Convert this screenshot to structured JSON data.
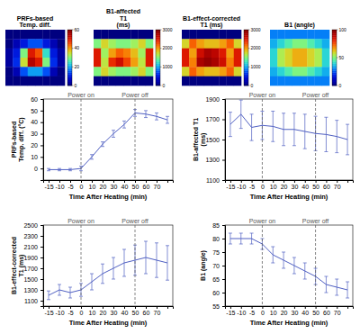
{
  "chart_data": [
    {
      "type": "heatmap",
      "title": "PRFs-based\nTemp. diff.",
      "colorbar_range": [
        0,
        60
      ],
      "colorbar_ticks": [
        0,
        20,
        40,
        60
      ],
      "cells": [
        [
          0,
          0,
          0,
          0,
          0,
          0,
          0,
          0
        ],
        [
          0,
          5,
          10,
          15,
          15,
          10,
          5,
          0
        ],
        [
          3,
          10,
          30,
          50,
          45,
          25,
          10,
          3
        ],
        [
          3,
          12,
          35,
          55,
          50,
          30,
          12,
          3
        ],
        [
          0,
          5,
          15,
          20,
          20,
          15,
          5,
          0
        ],
        [
          0,
          0,
          0,
          0,
          0,
          0,
          0,
          0
        ]
      ]
    },
    {
      "type": "heatmap",
      "title": "B1-affected\nT1\n(ms)",
      "colorbar_range": [
        0,
        3000
      ],
      "colorbar_ticks": [
        0,
        1000,
        2000,
        3000
      ],
      "cells": [
        [
          0,
          0,
          0,
          0,
          0,
          0,
          0,
          0
        ],
        [
          1500,
          1800,
          1600,
          1500,
          1500,
          1600,
          1800,
          1500
        ],
        [
          2500,
          1600,
          2000,
          2200,
          2100,
          1900,
          1600,
          2500
        ],
        [
          2500,
          1700,
          2400,
          2600,
          2300,
          2000,
          1700,
          2500
        ],
        [
          1500,
          1800,
          1600,
          1500,
          1500,
          1600,
          1800,
          1500
        ],
        [
          0,
          0,
          0,
          0,
          0,
          0,
          0,
          0
        ]
      ]
    },
    {
      "type": "heatmap",
      "title": "B1-effect-corrected\nT1 (ms)",
      "colorbar_range": [
        0,
        3000
      ],
      "colorbar_ticks": [
        0,
        1000,
        2000,
        3000
      ],
      "cells": [
        [
          0,
          0,
          0,
          0,
          0,
          0,
          0,
          0
        ],
        [
          1800,
          2200,
          2000,
          1900,
          1900,
          2000,
          2200,
          1800
        ],
        [
          2500,
          2000,
          2600,
          2800,
          2700,
          2500,
          2000,
          2500
        ],
        [
          2500,
          2100,
          2800,
          2900,
          2800,
          2600,
          2100,
          2500
        ],
        [
          1800,
          2200,
          2000,
          1900,
          1900,
          2000,
          2200,
          1800
        ],
        [
          0,
          0,
          0,
          0,
          0,
          0,
          0,
          0
        ]
      ]
    },
    {
      "type": "heatmap",
      "title": "B1 (angle)",
      "colorbar_range": [
        0,
        100
      ],
      "colorbar_ticks": [
        0,
        50,
        100
      ],
      "cells": [
        [
          30,
          30,
          30,
          30,
          30,
          30,
          30,
          30
        ],
        [
          35,
          40,
          45,
          50,
          50,
          45,
          40,
          35
        ],
        [
          40,
          55,
          60,
          65,
          65,
          60,
          55,
          40
        ],
        [
          40,
          55,
          60,
          65,
          65,
          60,
          55,
          40
        ],
        [
          35,
          40,
          45,
          50,
          50,
          45,
          40,
          35
        ],
        [
          30,
          30,
          30,
          30,
          30,
          30,
          30,
          30
        ]
      ]
    },
    {
      "type": "line",
      "xlabel": "Time After Heating (min)",
      "ylabel": "PRFs-based\nTemp. diff. (°C)",
      "categories": [
        "-15",
        "-10",
        "-5",
        "0",
        "10",
        "20",
        "30",
        "40",
        "50",
        "60",
        "70",
        null
      ],
      "values": [
        -1,
        -1,
        -1,
        0,
        10,
        21,
        30,
        38,
        48,
        47,
        45,
        42
      ],
      "errors": [
        1,
        1,
        1,
        2,
        2,
        2,
        3,
        3,
        3,
        3,
        3,
        3
      ],
      "ylim": [
        -10,
        60
      ],
      "yticks": [
        0,
        10,
        20,
        30,
        40,
        50,
        60
      ],
      "color": "#4f5fc2",
      "grid": false,
      "annotations": [
        {
          "text": "Power on",
          "x": "0"
        },
        {
          "text": "Power off",
          "x": "50"
        }
      ]
    },
    {
      "type": "line",
      "xlabel": "Time After Heating (min)",
      "ylabel": "B1-affected T1\n(ms)",
      "categories": [
        "-15",
        "-10",
        "-5",
        "0",
        "10",
        "20",
        "30",
        "40",
        "50",
        "60",
        "70",
        null
      ],
      "values": [
        1650,
        1750,
        1620,
        1640,
        1630,
        1600,
        1600,
        1580,
        1560,
        1550,
        1530,
        1500
      ],
      "errors": [
        120,
        140,
        130,
        140,
        150,
        160,
        160,
        170,
        170,
        170,
        160,
        150
      ],
      "ylim": [
        1100,
        1900
      ],
      "yticks": [
        1100,
        1300,
        1500,
        1700,
        1900
      ],
      "color": "#4f5fc2",
      "grid": false,
      "annotations": [
        {
          "text": "Power on",
          "x": "0"
        },
        {
          "text": "Power off",
          "x": "50"
        }
      ]
    },
    {
      "type": "line",
      "xlabel": "Time After Heating (min)",
      "ylabel": "B1-effect-corrected\nT1 (ms)",
      "categories": [
        "-15",
        "-10",
        "-5",
        "0",
        "10",
        "20",
        "30",
        "40",
        "50",
        "60",
        "70",
        null
      ],
      "values": [
        1200,
        1300,
        1250,
        1300,
        1450,
        1600,
        1700,
        1800,
        1850,
        1900,
        1850,
        1800
      ],
      "errors": [
        80,
        100,
        100,
        120,
        150,
        180,
        200,
        250,
        280,
        300,
        320,
        320
      ],
      "ylim": [
        1000,
        2500
      ],
      "yticks": [
        1100,
        1300,
        1500,
        1700,
        1900,
        2100,
        2300,
        2500
      ],
      "color": "#4f5fc2",
      "grid": false,
      "annotations": [
        {
          "text": "Power on",
          "x": "0"
        },
        {
          "text": "Power off",
          "x": "50"
        }
      ]
    },
    {
      "type": "line",
      "xlabel": "Time After Heating (min)",
      "ylabel": "B1 (angle)",
      "categories": [
        "-15",
        "-10",
        "-5",
        "0",
        "10",
        "20",
        "30",
        "40",
        "50",
        "60",
        "70",
        null
      ],
      "values": [
        80,
        80,
        80,
        78,
        74,
        72,
        70,
        68,
        66,
        63,
        62,
        61
      ],
      "errors": [
        2,
        2,
        2,
        2,
        3,
        3,
        3,
        3,
        3,
        3,
        3,
        3
      ],
      "ylim": [
        55,
        85
      ],
      "yticks": [
        55,
        60,
        65,
        70,
        75,
        80,
        85
      ],
      "color": "#4f5fc2",
      "grid": false,
      "annotations": [
        {
          "text": "Power on",
          "x": "0"
        },
        {
          "text": "Power off",
          "x": "50"
        }
      ]
    }
  ]
}
